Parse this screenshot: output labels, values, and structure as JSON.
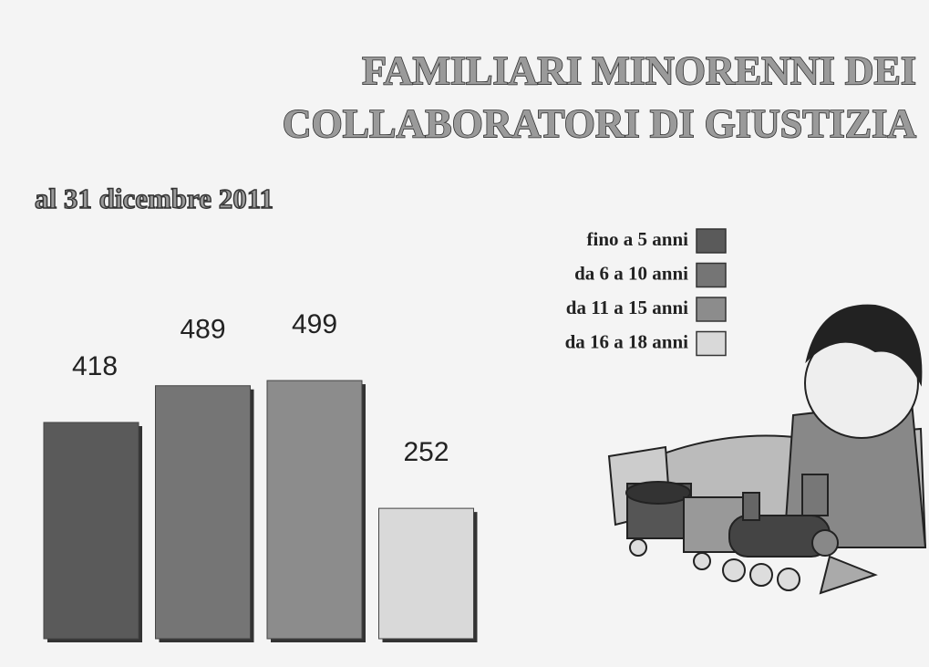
{
  "chart_data": {
    "type": "bar",
    "title": [
      "FAMILIARI  MINORENNI DEI",
      "COLLABORATORI DI GIUSTIZIA"
    ],
    "subtitle": "al 31 dicembre 2011",
    "categories": [
      null
    ],
    "series": [
      {
        "name": "fino a 5 anni",
        "color": "#5a5a5a",
        "values": [
          418
        ]
      },
      {
        "name": "da 6 a 10 anni",
        "color": "#757575",
        "values": [
          489
        ]
      },
      {
        "name": "da 11 a 15 anni",
        "color": "#8c8c8c",
        "values": [
          499
        ]
      },
      {
        "name": "da 16 a 18 anni",
        "color": "#d9d9d9",
        "values": [
          252
        ]
      }
    ],
    "legend": "upper-right"
  }
}
